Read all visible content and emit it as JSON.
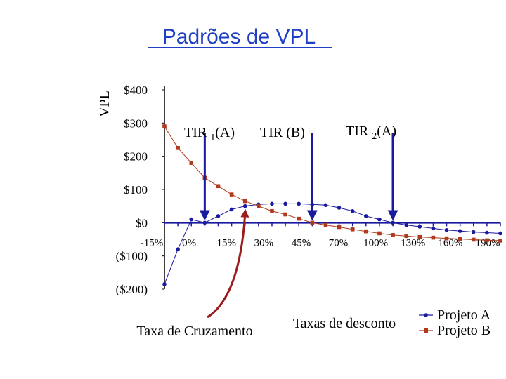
{
  "title": "Padrões de VPL",
  "chart_data": {
    "type": "line",
    "title": "Padrões de VPL",
    "ylabel": "VPL",
    "xlabel": "Taxas de desconto",
    "x_ticks": [
      "-15%",
      "0%",
      "15%",
      "30%",
      "45%",
      "70%",
      "100%",
      "130%",
      "160%",
      "190%"
    ],
    "y_ticks": [
      "$400",
      "$300",
      "$200",
      "$100",
      "$0",
      "($100)",
      "($200)"
    ],
    "ylim": [
      -200,
      400
    ],
    "legend_position": "bottom-right",
    "series": [
      {
        "name": "Projeto A",
        "color": "#1a1a9e",
        "marker": "circle",
        "points": [
          {
            "x": "-15%",
            "y": -185
          },
          {
            "x": "-10%",
            "y": -80
          },
          {
            "x": "-5%",
            "y": 10
          },
          {
            "x": "0%",
            "y": 0
          },
          {
            "x": "5%",
            "y": 20
          },
          {
            "x": "10%",
            "y": 40
          },
          {
            "x": "15%",
            "y": 50
          },
          {
            "x": "20%",
            "y": 55
          },
          {
            "x": "25%",
            "y": 57
          },
          {
            "x": "30%",
            "y": 57
          },
          {
            "x": "35%",
            "y": 57
          },
          {
            "x": "40%",
            "y": 55
          },
          {
            "x": "45%",
            "y": 53
          },
          {
            "x": "50%",
            "y": 45
          },
          {
            "x": "55%",
            "y": 35
          },
          {
            "x": "60%",
            "y": 20
          },
          {
            "x": "65%",
            "y": 10
          },
          {
            "x": "70%",
            "y": 0
          },
          {
            "x": "75%",
            "y": -7
          },
          {
            "x": "80%",
            "y": -12
          },
          {
            "x": "85%",
            "y": -17
          },
          {
            "x": "90%",
            "y": -22
          },
          {
            "x": "95%",
            "y": -25
          },
          {
            "x": "100%",
            "y": -28
          },
          {
            "x": "105%",
            "y": -30
          },
          {
            "x": "110%",
            "y": -32
          }
        ]
      },
      {
        "name": "Projeto B",
        "color": "#b03a1c",
        "marker": "square",
        "points": [
          {
            "x": "-15%",
            "y": 290
          },
          {
            "x": "-10%",
            "y": 225
          },
          {
            "x": "-5%",
            "y": 180
          },
          {
            "x": "0%",
            "y": 135
          },
          {
            "x": "5%",
            "y": 110
          },
          {
            "x": "10%",
            "y": 85
          },
          {
            "x": "15%",
            "y": 65
          },
          {
            "x": "20%",
            "y": 50
          },
          {
            "x": "25%",
            "y": 35
          },
          {
            "x": "30%",
            "y": 25
          },
          {
            "x": "35%",
            "y": 12
          },
          {
            "x": "40%",
            "y": 0
          },
          {
            "x": "45%",
            "y": -7
          },
          {
            "x": "50%",
            "y": -13
          },
          {
            "x": "55%",
            "y": -20
          },
          {
            "x": "60%",
            "y": -26
          },
          {
            "x": "65%",
            "y": -32
          },
          {
            "x": "70%",
            "y": -37
          },
          {
            "x": "75%",
            "y": -40
          },
          {
            "x": "80%",
            "y": -43
          },
          {
            "x": "85%",
            "y": -45
          },
          {
            "x": "90%",
            "y": -47
          },
          {
            "x": "95%",
            "y": -49
          },
          {
            "x": "100%",
            "y": -51
          },
          {
            "x": "105%",
            "y": -53
          },
          {
            "x": "110%",
            "y": -54
          }
        ]
      }
    ],
    "annotations": [
      {
        "id": "tir1a",
        "label_main": "TIR ",
        "label_sub": "1",
        "label_end": "(A)",
        "x": "0%"
      },
      {
        "id": "tirb",
        "label_main": "TIR (B)",
        "label_sub": "",
        "label_end": "",
        "x": "40%"
      },
      {
        "id": "tir2a",
        "label_main": "TIR ",
        "label_sub": "2",
        "label_end": "(A)",
        "x": "70%"
      }
    ],
    "crossover_label": "Taxa de Cruzamento"
  }
}
